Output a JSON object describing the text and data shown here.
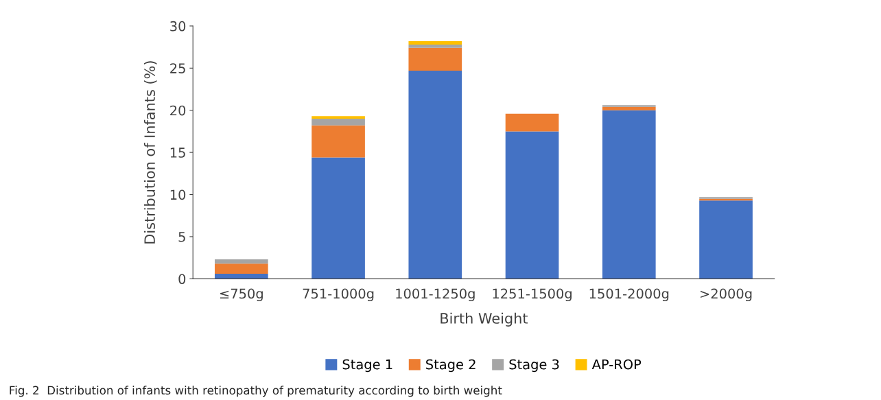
{
  "chart_data": {
    "type": "bar",
    "stacked": true,
    "xlabel": "Birth Weight",
    "ylabel": "Distribution of Infants (%)",
    "categories": [
      "≤750g",
      "751-1000g",
      "1001-1250g",
      "1251-1500g",
      "1501-2000g",
      ">2000g"
    ],
    "series": [
      {
        "name": "Stage 1",
        "color": "#4472c4",
        "values": [
          0.6,
          14.4,
          24.7,
          17.5,
          20.0,
          9.3
        ]
      },
      {
        "name": "Stage 2",
        "color": "#ed7d31",
        "values": [
          1.2,
          3.8,
          2.7,
          2.1,
          0.4,
          0.2
        ]
      },
      {
        "name": "Stage 3",
        "color": "#a5a5a5",
        "values": [
          0.5,
          0.8,
          0.4,
          null,
          0.2,
          0.2
        ]
      },
      {
        "name": "AP-ROP",
        "color": "#ffc000",
        "values": [
          null,
          0.3,
          0.4,
          null,
          null,
          null
        ]
      }
    ],
    "ylim": [
      0,
      30
    ],
    "yticks": [
      0,
      5,
      10,
      15,
      20,
      25,
      30
    ],
    "grid": false,
    "legend": "bottom",
    "annotations": [
      "Fig. 2  Distribution of infants with retinopathy of prematurity according to birth weight"
    ]
  }
}
